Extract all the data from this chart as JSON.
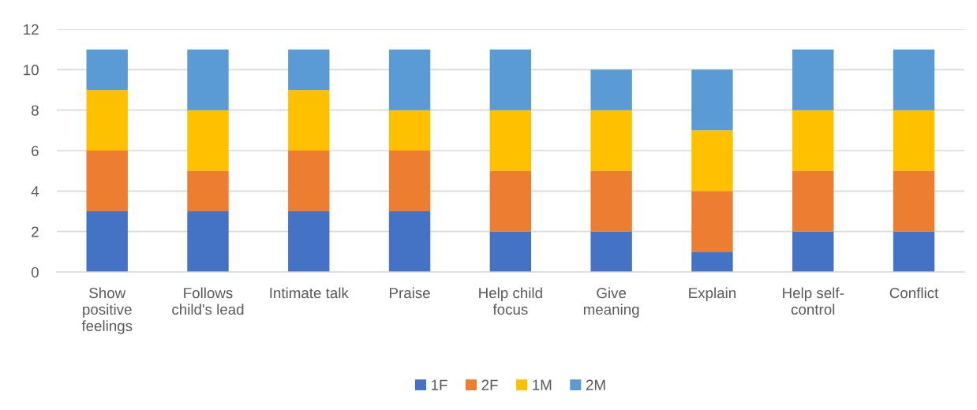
{
  "chart_data": {
    "type": "bar",
    "stacked": true,
    "categories": [
      "Show\npositive\nfeelings",
      "Follows\nchild's lead",
      "Intimate talk",
      "Praise",
      "Help child\nfocus",
      "Give\nmeaning",
      "Explain",
      "Help self-\ncontrol",
      "Conflict"
    ],
    "series": [
      {
        "name": "1F",
        "color": "#4472c4",
        "values": [
          3,
          3,
          3,
          3,
          2,
          2,
          1,
          2,
          2
        ]
      },
      {
        "name": "2F",
        "color": "#ed7d31",
        "values": [
          3,
          2,
          3,
          3,
          3,
          3,
          3,
          3,
          3
        ]
      },
      {
        "name": "1M",
        "color": "#ffc000",
        "values": [
          3,
          3,
          3,
          2,
          3,
          3,
          3,
          3,
          3
        ]
      },
      {
        "name": "2M",
        "color": "#5b9bd5",
        "values": [
          2,
          3,
          2,
          3,
          3,
          2,
          3,
          3,
          3
        ]
      }
    ],
    "ylim": [
      0,
      12
    ],
    "yticks": [
      0,
      2,
      4,
      6,
      8,
      10,
      12
    ],
    "grid": "y",
    "legend": "bottom"
  }
}
